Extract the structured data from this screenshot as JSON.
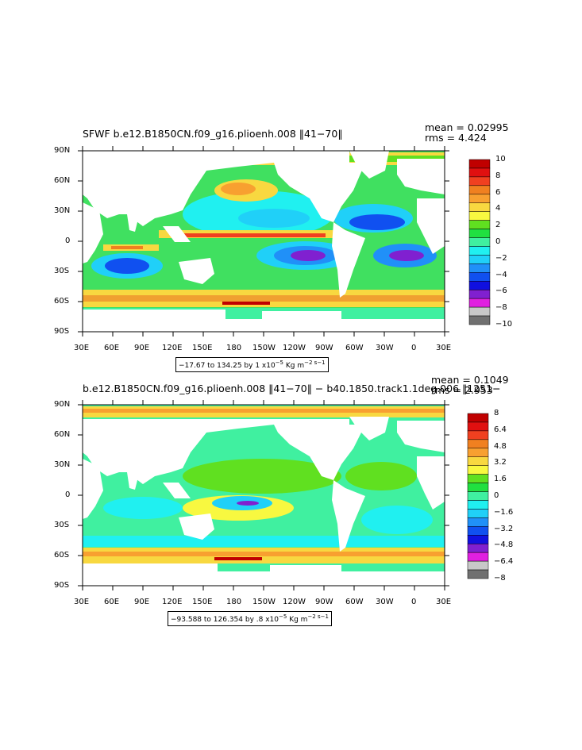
{
  "panels": [
    {
      "title": "SFWF b.e12.B1850CN.f09_g16.plioenh.008 ‖41−70‖",
      "mean": "mean = 0.02995",
      "rms": "rms = 4.424",
      "contour_prefix": "−17.67 to 134.25 by 1 x10",
      "contour_exp": "−5",
      "contour_unit": " Kg m",
      "contour_unit_exp": "−2 s−1",
      "lat_labels": [
        "90N",
        "60N",
        "30N",
        "0",
        "30S",
        "60S",
        "90S"
      ],
      "lon_labels": [
        "30E",
        "60E",
        "90E",
        "120E",
        "150E",
        "180",
        "150W",
        "120W",
        "90W",
        "60W",
        "30W",
        "0",
        "30E"
      ],
      "legend_labels": [
        "10",
        "8",
        "6",
        "4",
        "2",
        "0",
        "−2",
        "−4",
        "−6",
        "−8",
        "−10"
      ],
      "legend_colors": [
        "#c00000",
        "#e01010",
        "#f04020",
        "#f08020",
        "#f8a030",
        "#f8d840",
        "#f8f840",
        "#60e020",
        "#20e040",
        "#40f0a0",
        "#20f0f0",
        "#20d0f8",
        "#2090f8",
        "#1050f0",
        "#1010e0",
        "#8020d0",
        "#e020e0",
        "#c8c8c8",
        "#707070"
      ]
    },
    {
      "title": "b.e12.B1850CN.f09_g16.plioenh.008 ‖41−70‖ − b40.1850.track1.1deg.006 ‖1251−",
      "mean": "mean = 0.1049",
      "rms": "rms = 2.953",
      "contour_prefix": "−93.588 to 126.354 by .8 x10",
      "contour_exp": "−5",
      "contour_unit": " Kg m",
      "contour_unit_exp": "−2 s−1",
      "lat_labels": [
        "90N",
        "60N",
        "30N",
        "0",
        "30S",
        "60S",
        "90S"
      ],
      "lon_labels": [
        "30E",
        "60E",
        "90E",
        "120E",
        "150E",
        "180",
        "150W",
        "120W",
        "90W",
        "60W",
        "30W",
        "0",
        "30E"
      ],
      "legend_labels": [
        "8",
        "6.4",
        "4.8",
        "3.2",
        "1.6",
        "0",
        "−1.6",
        "−3.2",
        "−4.8",
        "−6.4",
        "−8"
      ],
      "legend_colors": [
        "#c00000",
        "#e01010",
        "#f04020",
        "#f08020",
        "#f8a030",
        "#f8d840",
        "#f8f840",
        "#60e020",
        "#20e040",
        "#40f0a0",
        "#20f0f0",
        "#20d0f8",
        "#2090f8",
        "#1050f0",
        "#1010e0",
        "#8020d0",
        "#e020e0",
        "#c8c8c8",
        "#707070"
      ]
    }
  ]
}
